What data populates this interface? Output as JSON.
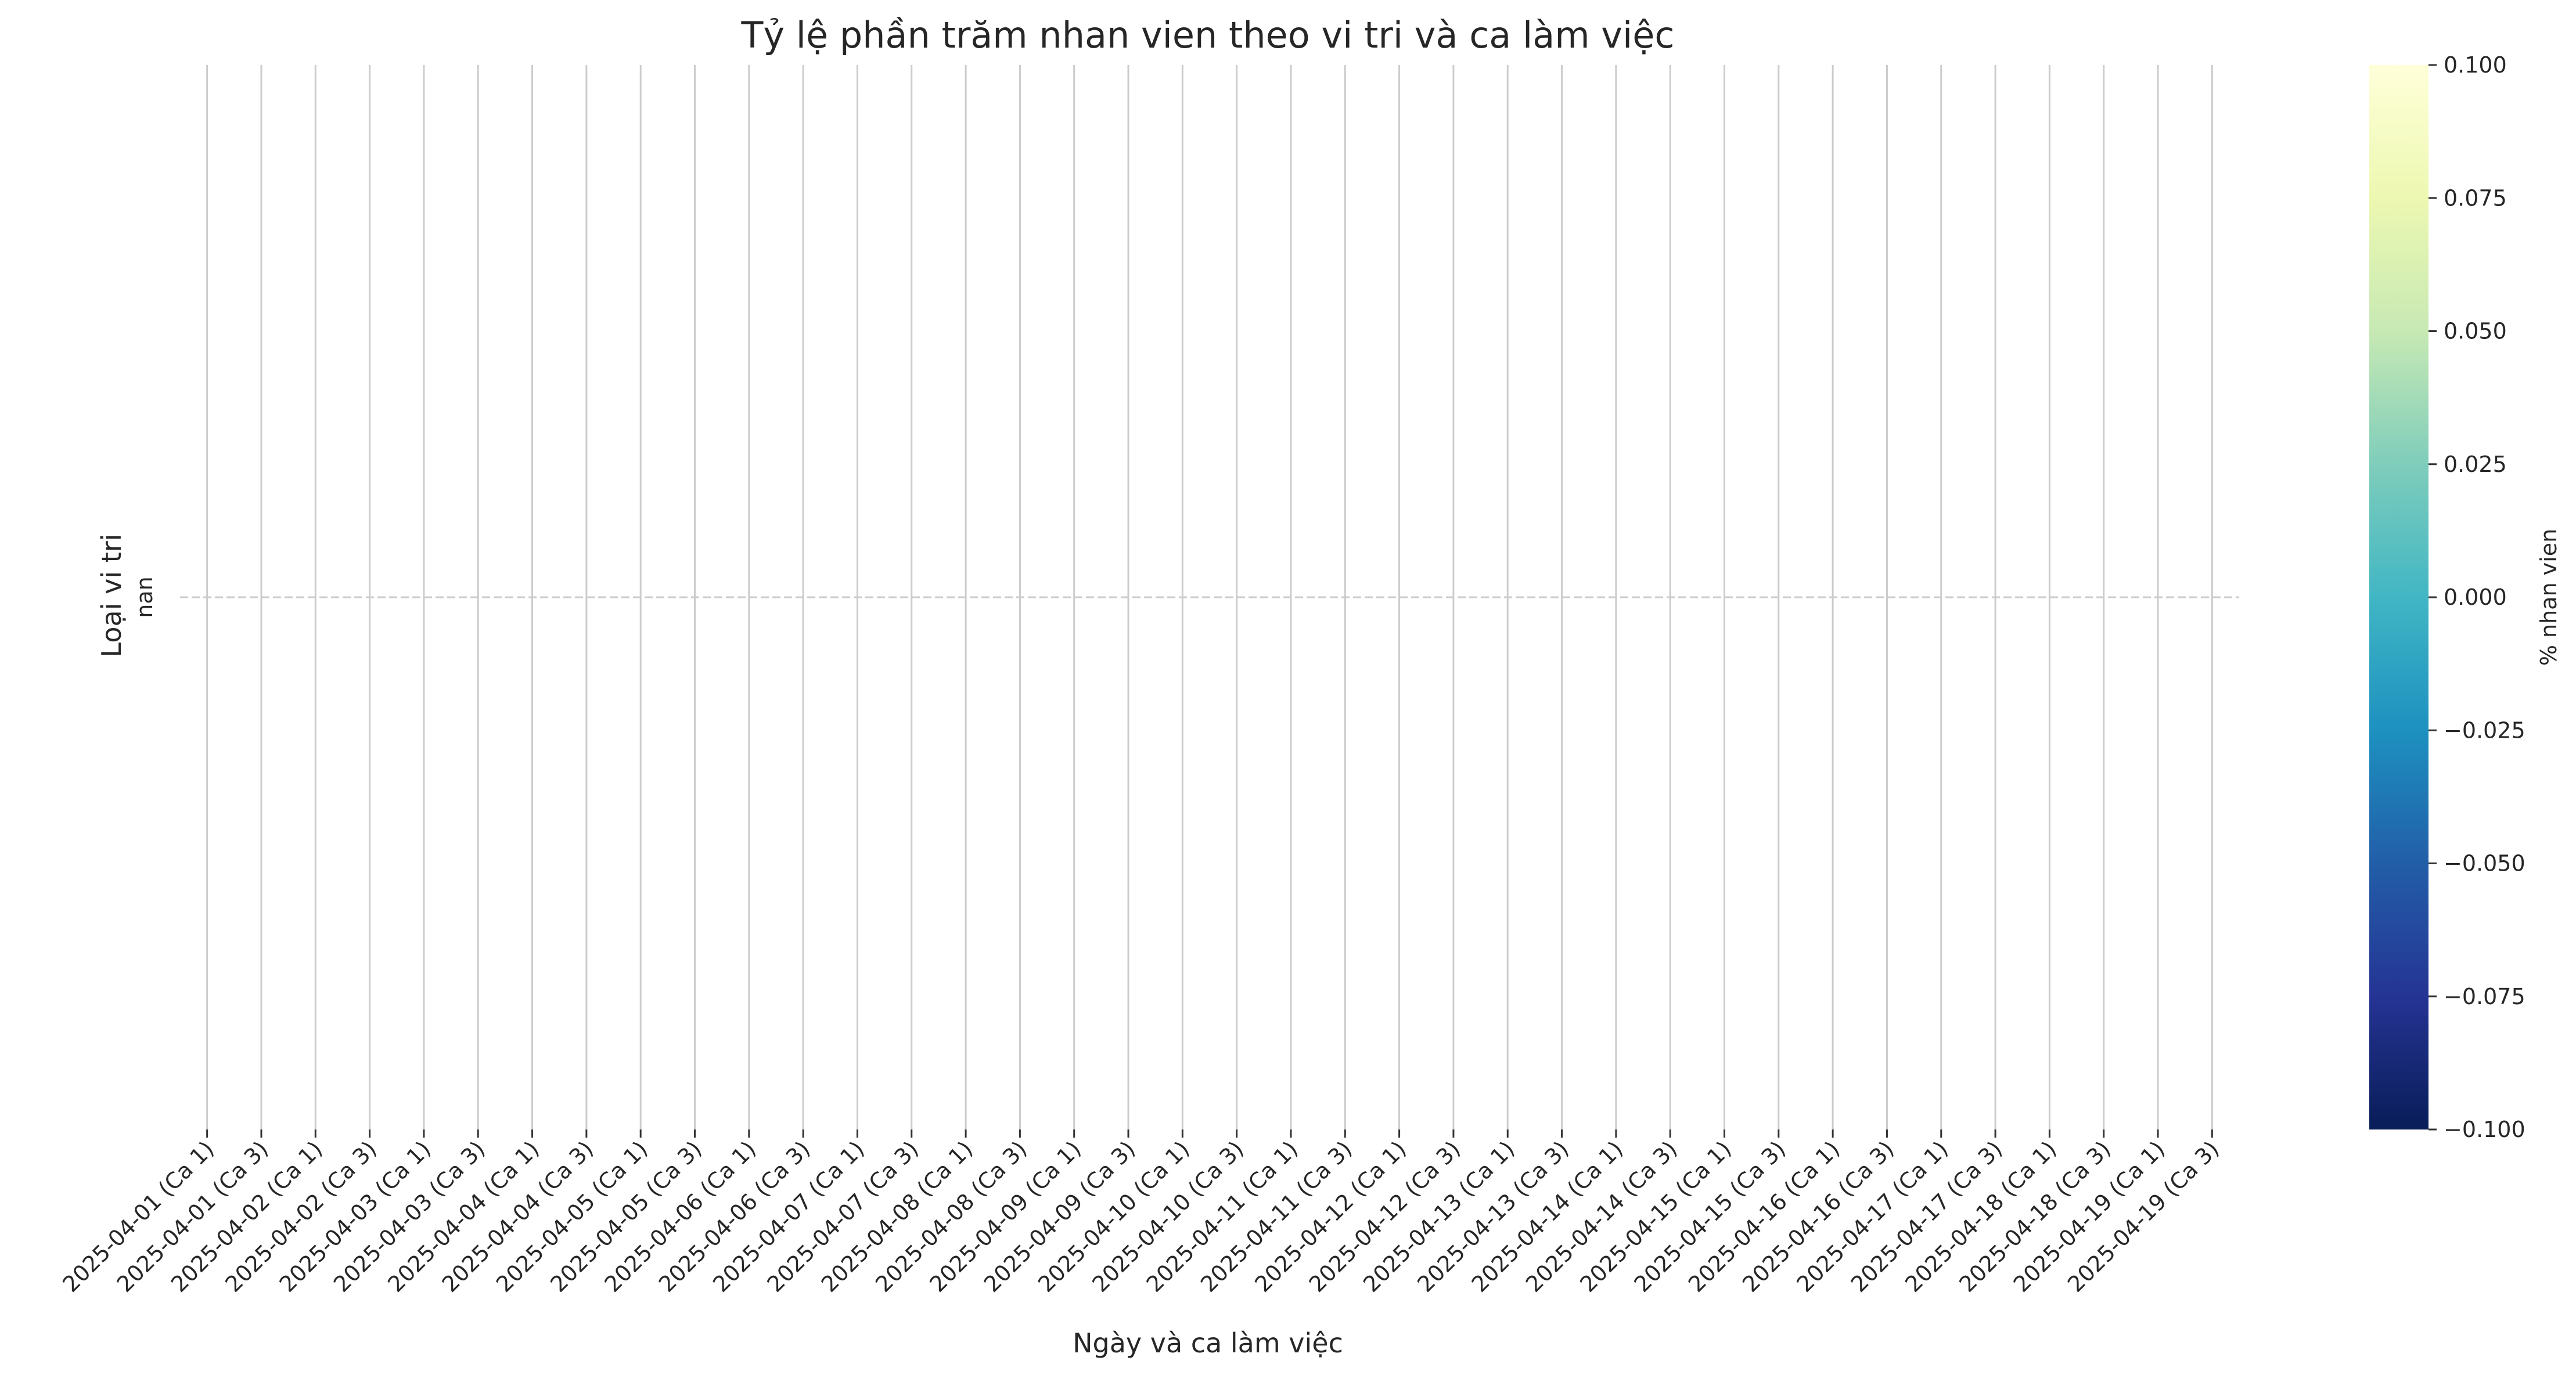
{
  "chart_data": {
    "type": "heatmap",
    "title": "Tỷ lệ phần trăm nhan vien theo vi tri và ca làm việc",
    "xlabel": "Ngày và ca làm việc",
    "ylabel": "Loại vi tri",
    "y_categories": [
      "nan"
    ],
    "x_categories": [
      "2025-04-01 (Ca 1)",
      "2025-04-01 (Ca 3)",
      "2025-04-02 (Ca 1)",
      "2025-04-02 (Ca 3)",
      "2025-04-03 (Ca 1)",
      "2025-04-03 (Ca 3)",
      "2025-04-04 (Ca 1)",
      "2025-04-04 (Ca 3)",
      "2025-04-05 (Ca 1)",
      "2025-04-05 (Ca 3)",
      "2025-04-06 (Ca 1)",
      "2025-04-06 (Ca 3)",
      "2025-04-07 (Ca 1)",
      "2025-04-07 (Ca 3)",
      "2025-04-08 (Ca 1)",
      "2025-04-08 (Ca 3)",
      "2025-04-09 (Ca 1)",
      "2025-04-09 (Ca 3)",
      "2025-04-10 (Ca 1)",
      "2025-04-10 (Ca 3)",
      "2025-04-11 (Ca 1)",
      "2025-04-11 (Ca 3)",
      "2025-04-12 (Ca 1)",
      "2025-04-12 (Ca 3)",
      "2025-04-13 (Ca 1)",
      "2025-04-13 (Ca 3)",
      "2025-04-14 (Ca 1)",
      "2025-04-14 (Ca 3)",
      "2025-04-15 (Ca 1)",
      "2025-04-15 (Ca 3)",
      "2025-04-16 (Ca 1)",
      "2025-04-16 (Ca 3)",
      "2025-04-17 (Ca 1)",
      "2025-04-17 (Ca 3)",
      "2025-04-18 (Ca 1)",
      "2025-04-18 (Ca 3)",
      "2025-04-19 (Ca 1)",
      "2025-04-19 (Ca 3)"
    ],
    "values": [
      [
        null,
        null,
        null,
        null,
        null,
        null,
        null,
        null,
        null,
        null,
        null,
        null,
        null,
        null,
        null,
        null,
        null,
        null,
        null,
        null,
        null,
        null,
        null,
        null,
        null,
        null,
        null,
        null,
        null,
        null,
        null,
        null,
        null,
        null,
        null,
        null,
        null,
        null
      ]
    ],
    "grid": true,
    "colorbar": {
      "label": "% nhan vien",
      "colormap": "YlGnBu",
      "range": [
        -0.1,
        0.1
      ],
      "ticks": [
        "0.100",
        "0.075",
        "0.050",
        "0.025",
        "0.000",
        "−0.025",
        "−0.050",
        "−0.075",
        "−0.100"
      ],
      "tick_values": [
        0.1,
        0.075,
        0.05,
        0.025,
        0.0,
        -0.025,
        -0.05,
        -0.075,
        -0.1
      ],
      "colors": [
        "#081d58",
        "#253494",
        "#225ea8",
        "#1d91c0",
        "#41b6c4",
        "#7fcdbb",
        "#c7e9b4",
        "#edf8b1",
        "#ffffd9"
      ]
    }
  }
}
